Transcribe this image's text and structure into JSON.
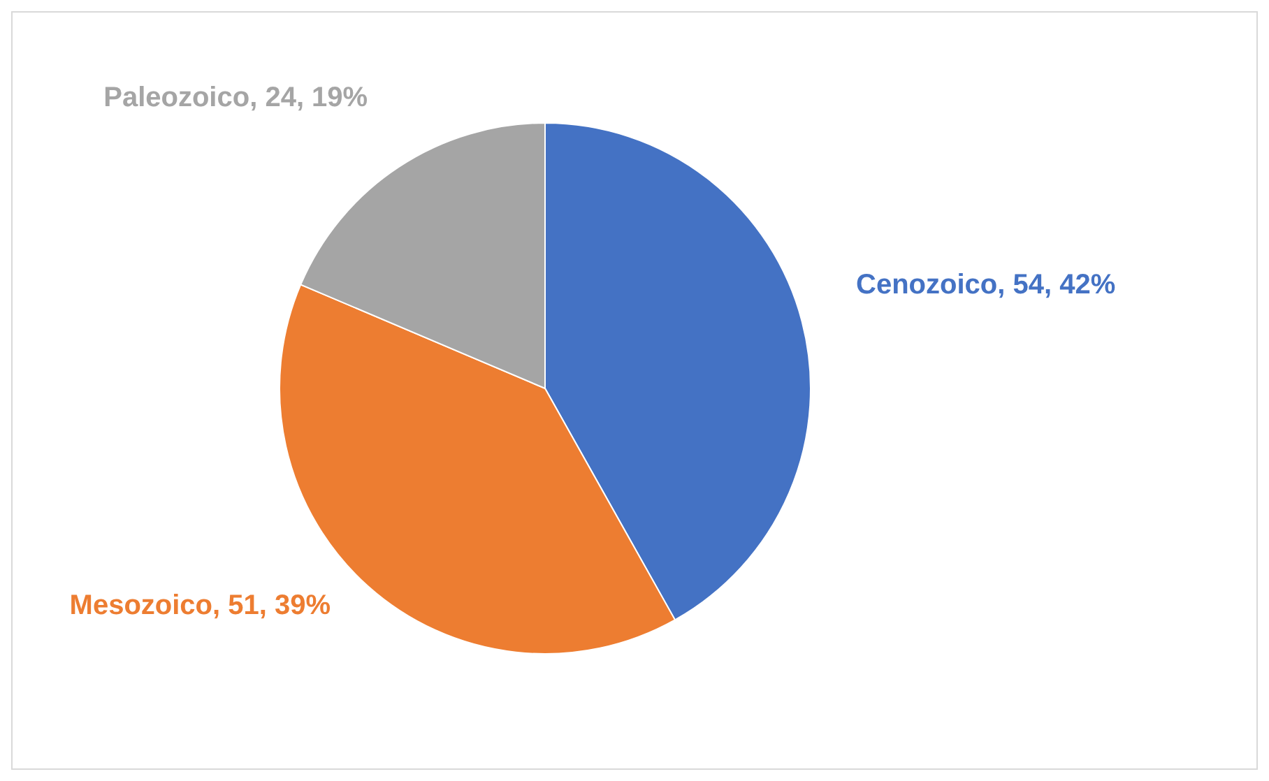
{
  "chart_data": {
    "type": "pie",
    "categories": [
      "Cenozoico",
      "Mesozoico",
      "Paleozoico"
    ],
    "values": [
      54,
      51,
      24
    ],
    "colors": [
      "#4472c4",
      "#ed7d31",
      "#a5a5a5"
    ],
    "value_labels": [
      "54, 42%",
      "51, 39%",
      "24, 19%"
    ]
  }
}
